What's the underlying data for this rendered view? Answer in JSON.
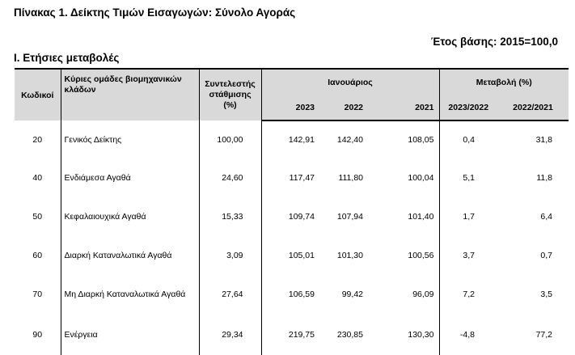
{
  "title": "Πίνακας 1. Δείκτης Τιμών Εισαγωγών: Σύνολο Αγοράς",
  "base_year": "Έτος βάσης: 2015=100,0",
  "section_title": "Ι. Ετήσιες μεταβολές",
  "headers": {
    "code": "Κωδικοί",
    "groups": "Κύριες ομάδες βιομηχανικών κλάδων",
    "weight": "Συντελεστής στάθμισης (%)",
    "month": "Ιανουάριος",
    "change": "Μεταβολή (%)",
    "y2023": "2023",
    "y2022": "2022",
    "y2021": "2021",
    "ch1": "2023/2022",
    "ch2": "2022/2021"
  },
  "rows": [
    {
      "code": "20",
      "name": "Γενικός Δείκτης",
      "weight": "100,00",
      "v2023": "142,91",
      "v2022": "142,40",
      "v2021": "108,05",
      "ch1": "0,4",
      "ch2": "31,8"
    },
    {
      "code": "40",
      "name": "Ενδιάμεσα Αγαθά",
      "weight": "24,60",
      "v2023": "117,47",
      "v2022": "111,80",
      "v2021": "100,04",
      "ch1": "5,1",
      "ch2": "11,8"
    },
    {
      "code": "50",
      "name": "Κεφαλαιουχικά Αγαθά",
      "weight": "15,33",
      "v2023": "109,74",
      "v2022": "107,94",
      "v2021": "101,40",
      "ch1": "1,7",
      "ch2": "6,4"
    },
    {
      "code": "60",
      "name": "Διαρκή Καταναλωτικά Αγαθά",
      "weight": "3,09",
      "v2023": "105,01",
      "v2022": "101,30",
      "v2021": "100,56",
      "ch1": "3,7",
      "ch2": "0,7"
    },
    {
      "code": "70",
      "name": "Μη Διαρκή Καταναλωτικά Αγαθά",
      "weight": "27,64",
      "v2023": "106,59",
      "v2022": "99,42",
      "v2021": "96,09",
      "ch1": "7,2",
      "ch2": "3,5"
    },
    {
      "code": "90",
      "name": "Ενέργεια",
      "weight": "29,34",
      "v2023": "219,75",
      "v2022": "230,85",
      "v2021": "130,30",
      "ch1": "-4,8",
      "ch2": "77,2"
    }
  ]
}
